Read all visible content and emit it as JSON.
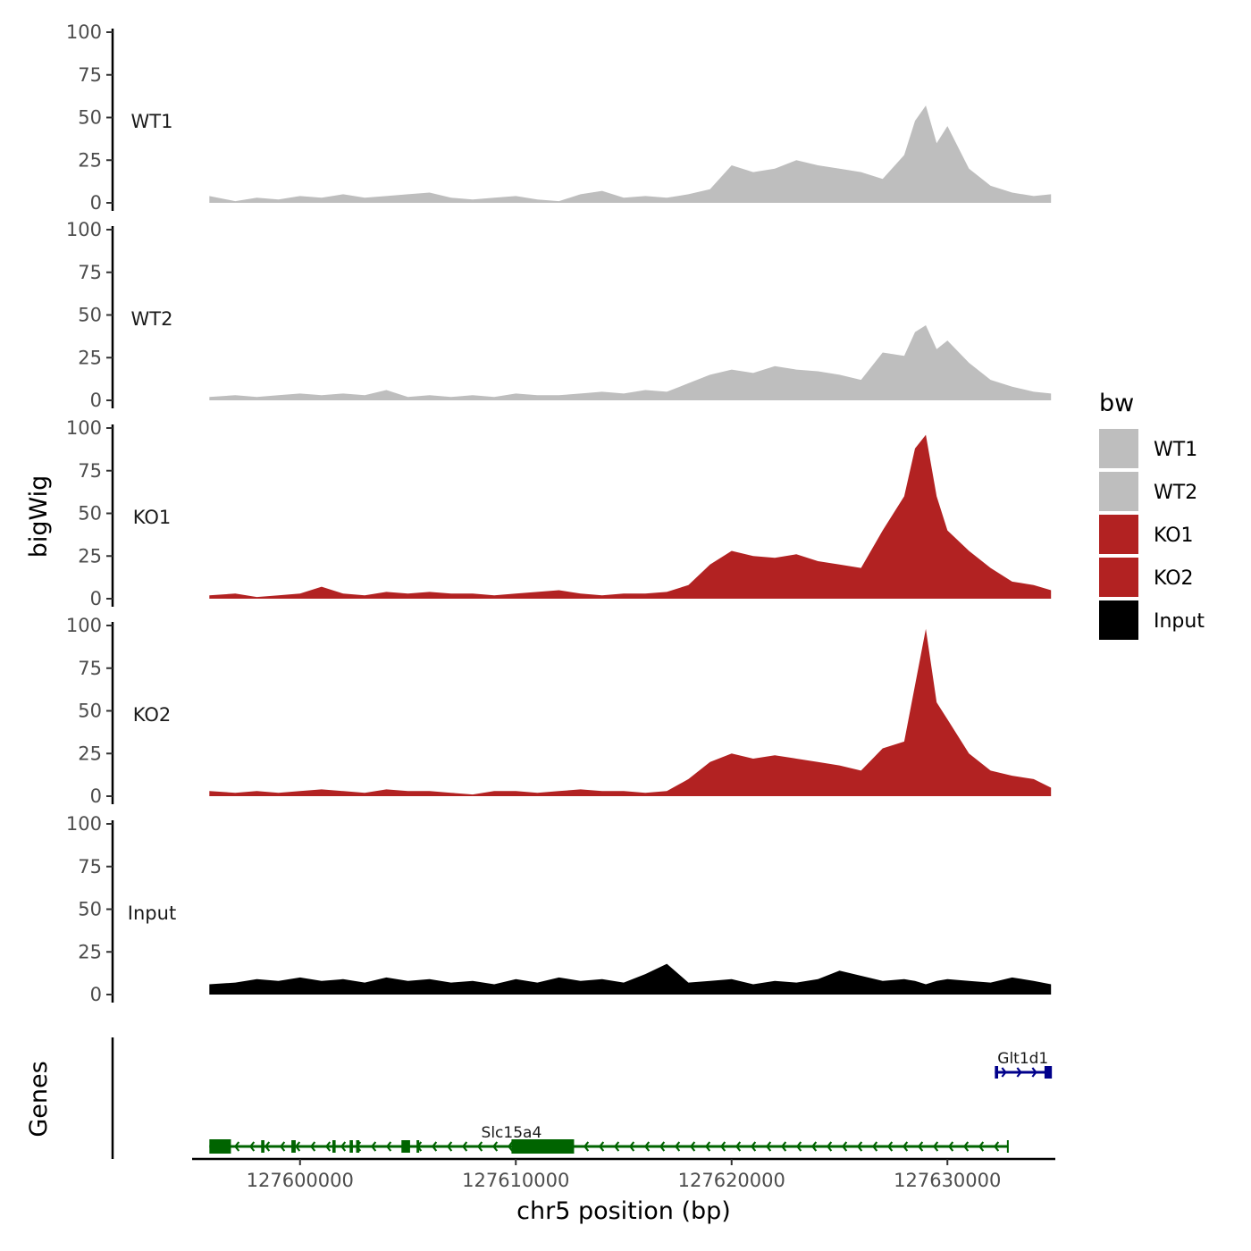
{
  "chart_data": {
    "type": "area",
    "title": "",
    "xlabel": "chr5 position (bp)",
    "ylabel_tracks": "bigWig",
    "ylabel_genes": "Genes",
    "x_range": [
      127595000,
      127635000
    ],
    "x_ticks": [
      127600000,
      127610000,
      127620000,
      127630000
    ],
    "x_tick_labels": [
      "127600000",
      "127610000",
      "127620000",
      "127630000"
    ],
    "ylim": [
      0,
      100
    ],
    "y_ticks": [
      0,
      25,
      50,
      75,
      100
    ],
    "y_tick_labels": [
      "0",
      "25",
      "50",
      "75",
      "100"
    ],
    "data_x_range": [
      127595800,
      127634800
    ],
    "tracks": [
      {
        "name": "WT1",
        "color": "#bebebe",
        "x": [
          127595800,
          127597000,
          127598000,
          127599000,
          127600000,
          127601000,
          127602000,
          127603000,
          127604000,
          127605000,
          127606000,
          127607000,
          127608000,
          127609000,
          127610000,
          127611000,
          127612000,
          127613000,
          127614000,
          127615000,
          127616000,
          127617000,
          127618000,
          127619000,
          127620000,
          127621000,
          127622000,
          127623000,
          127624000,
          127625000,
          127626000,
          127627000,
          127628000,
          127628500,
          127629000,
          127629500,
          127630000,
          127631000,
          127632000,
          127633000,
          127634000,
          127634800
        ],
        "values": [
          4,
          1,
          3,
          2,
          4,
          3,
          5,
          3,
          4,
          5,
          6,
          3,
          2,
          3,
          4,
          2,
          1,
          5,
          7,
          3,
          4,
          3,
          5,
          8,
          22,
          18,
          20,
          25,
          22,
          20,
          18,
          14,
          28,
          48,
          57,
          35,
          45,
          20,
          10,
          6,
          4,
          5
        ]
      },
      {
        "name": "WT2",
        "color": "#bebebe",
        "x": [
          127595800,
          127597000,
          127598000,
          127599000,
          127600000,
          127601000,
          127602000,
          127603000,
          127604000,
          127605000,
          127606000,
          127607000,
          127608000,
          127609000,
          127610000,
          127611000,
          127612000,
          127613000,
          127614000,
          127615000,
          127616000,
          127617000,
          127618000,
          127619000,
          127620000,
          127621000,
          127622000,
          127623000,
          127624000,
          127625000,
          127626000,
          127627000,
          127628000,
          127628500,
          127629000,
          127629500,
          127630000,
          127631000,
          127632000,
          127633000,
          127634000,
          127634800
        ],
        "values": [
          2,
          3,
          2,
          3,
          4,
          3,
          4,
          3,
          6,
          2,
          3,
          2,
          3,
          2,
          4,
          3,
          3,
          4,
          5,
          4,
          6,
          5,
          10,
          15,
          18,
          16,
          20,
          18,
          17,
          15,
          12,
          28,
          26,
          40,
          44,
          30,
          35,
          22,
          12,
          8,
          5,
          4
        ]
      },
      {
        "name": "KO1",
        "color": "#b22222",
        "x": [
          127595800,
          127597000,
          127598000,
          127599000,
          127600000,
          127601000,
          127602000,
          127603000,
          127604000,
          127605000,
          127606000,
          127607000,
          127608000,
          127609000,
          127610000,
          127611000,
          127612000,
          127613000,
          127614000,
          127615000,
          127616000,
          127617000,
          127618000,
          127619000,
          127620000,
          127621000,
          127622000,
          127623000,
          127624000,
          127625000,
          127626000,
          127627000,
          127628000,
          127628500,
          127629000,
          127629500,
          127630000,
          127631000,
          127632000,
          127633000,
          127634000,
          127634800
        ],
        "values": [
          2,
          3,
          1,
          2,
          3,
          7,
          3,
          2,
          4,
          3,
          4,
          3,
          3,
          2,
          3,
          4,
          5,
          3,
          2,
          3,
          3,
          4,
          8,
          20,
          28,
          25,
          24,
          26,
          22,
          20,
          18,
          40,
          60,
          88,
          96,
          60,
          40,
          28,
          18,
          10,
          8,
          5
        ]
      },
      {
        "name": "KO2",
        "color": "#b22222",
        "x": [
          127595800,
          127597000,
          127598000,
          127599000,
          127600000,
          127601000,
          127602000,
          127603000,
          127604000,
          127605000,
          127606000,
          127607000,
          127608000,
          127609000,
          127610000,
          127611000,
          127612000,
          127613000,
          127614000,
          127615000,
          127616000,
          127617000,
          127618000,
          127619000,
          127620000,
          127621000,
          127622000,
          127623000,
          127624000,
          127625000,
          127626000,
          127627000,
          127628000,
          127628500,
          127629000,
          127629500,
          127630000,
          127631000,
          127632000,
          127633000,
          127634000,
          127634800
        ],
        "values": [
          3,
          2,
          3,
          2,
          3,
          4,
          3,
          2,
          4,
          3,
          3,
          2,
          1,
          3,
          3,
          2,
          3,
          4,
          3,
          3,
          2,
          3,
          10,
          20,
          25,
          22,
          24,
          22,
          20,
          18,
          15,
          28,
          32,
          65,
          98,
          55,
          45,
          25,
          15,
          12,
          10,
          5
        ]
      },
      {
        "name": "Input",
        "color": "#000000",
        "x": [
          127595800,
          127597000,
          127598000,
          127599000,
          127600000,
          127601000,
          127602000,
          127603000,
          127604000,
          127605000,
          127606000,
          127607000,
          127608000,
          127609000,
          127610000,
          127611000,
          127612000,
          127613000,
          127614000,
          127615000,
          127616000,
          127617000,
          127618000,
          127619000,
          127620000,
          127621000,
          127622000,
          127623000,
          127624000,
          127625000,
          127626000,
          127627000,
          127628000,
          127628500,
          127629000,
          127629500,
          127630000,
          127631000,
          127632000,
          127633000,
          127634000,
          127634800
        ],
        "values": [
          6,
          7,
          9,
          8,
          10,
          8,
          9,
          7,
          10,
          8,
          9,
          7,
          8,
          6,
          9,
          7,
          10,
          8,
          9,
          7,
          12,
          18,
          7,
          8,
          9,
          6,
          8,
          7,
          9,
          14,
          11,
          8,
          9,
          8,
          6,
          8,
          9,
          8,
          7,
          10,
          8,
          6
        ]
      }
    ],
    "legend": {
      "title": "bw",
      "position": "right",
      "entries": [
        {
          "label": "WT1",
          "color": "#bebebe"
        },
        {
          "label": "WT2",
          "color": "#bebebe"
        },
        {
          "label": "KO1",
          "color": "#b22222"
        },
        {
          "label": "KO2",
          "color": "#b22222"
        },
        {
          "label": "Input",
          "color": "#000000"
        }
      ]
    },
    "genes": [
      {
        "name": "Slc15a4",
        "strand": "-",
        "color": "#006400",
        "start": 127595800,
        "end": 127632800,
        "exons": [
          [
            127595800,
            127596800
          ],
          [
            127598200,
            127598350
          ],
          [
            127599600,
            127599800
          ],
          [
            127601500,
            127601650
          ],
          [
            127602300,
            127602450
          ],
          [
            127602600,
            127602750
          ],
          [
            127604700,
            127605100
          ],
          [
            127605400,
            127605500
          ],
          [
            127609800,
            127612700
          ]
        ],
        "label_x": 127609800
      },
      {
        "name": "Glt1d1",
        "strand": "+",
        "color": "#00008b",
        "start": 127632200,
        "end": 127634800,
        "exons": [
          [
            127632200,
            127632350
          ],
          [
            127634500,
            127634800
          ]
        ],
        "label_x": 127633500
      }
    ]
  }
}
